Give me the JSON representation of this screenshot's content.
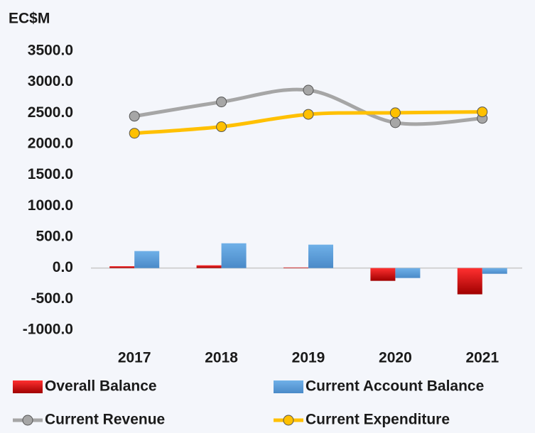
{
  "chart_data": {
    "type": "bar-line",
    "title": "EC$M",
    "categories": [
      "2017",
      "2018",
      "2019",
      "2020",
      "2021"
    ],
    "series": [
      {
        "name": "Overall Balance",
        "type": "bar",
        "color": "#c00000",
        "values": [
          30,
          45,
          10,
          -206,
          -423
        ]
      },
      {
        "name": "Current Account Balance",
        "type": "bar",
        "color": "#5b9bd5",
        "values": [
          275,
          400,
          378,
          -160,
          -92
        ]
      },
      {
        "name": "Current Revenue",
        "type": "line",
        "color": "#a6a6a6",
        "values": [
          2450,
          2680,
          2870,
          2345,
          2415
        ]
      },
      {
        "name": "Current Expenditure",
        "type": "line",
        "color": "#ffc000",
        "values": [
          2175,
          2280,
          2480,
          2505,
          2520
        ]
      }
    ],
    "ylim": [
      -1000,
      3500
    ],
    "yticks": [
      {
        "value": -1000,
        "label": "-1000.0"
      },
      {
        "value": -500,
        "label": "-500.0"
      },
      {
        "value": 0,
        "label": "0.0"
      },
      {
        "value": 500,
        "label": "500.0"
      },
      {
        "value": 1000,
        "label": "1000.0"
      },
      {
        "value": 1500,
        "label": "1500.0"
      },
      {
        "value": 2000,
        "label": "2000.0"
      },
      {
        "value": 2500,
        "label": "2500.0"
      },
      {
        "value": 3000,
        "label": "3000.0"
      },
      {
        "value": 3500,
        "label": "3500.0"
      }
    ],
    "grid": false
  }
}
